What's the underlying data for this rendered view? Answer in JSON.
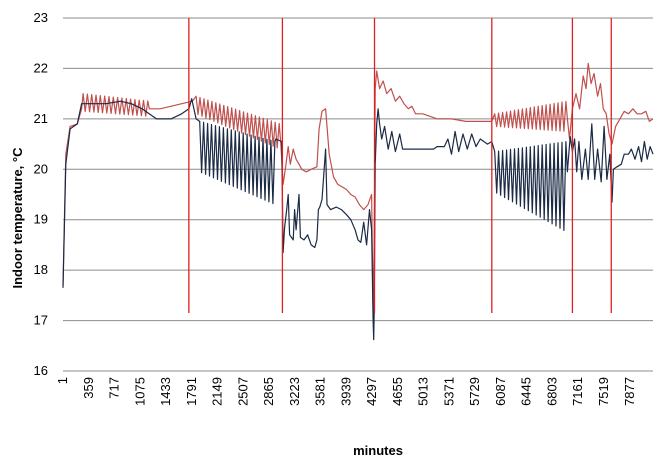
{
  "chart_data": {
    "type": "line",
    "xlabel": "minutes",
    "ylabel": "Indoor temperature, °C",
    "ylim": [
      16,
      23
    ],
    "yticks": [
      16,
      17,
      18,
      19,
      20,
      21,
      22,
      23
    ],
    "xlim": [
      1,
      8200
    ],
    "xticks": [
      1,
      359,
      717,
      1075,
      1433,
      1791,
      2149,
      2507,
      2865,
      3223,
      3581,
      3939,
      4297,
      4655,
      5013,
      5371,
      5729,
      6087,
      6445,
      6803,
      7161,
      7519,
      7877
    ],
    "grid": "horizontal",
    "colors": {
      "dark_series": "#1b2a45",
      "red_series": "#c0504d",
      "event_lines": "#e02020",
      "grid": "#8c8c8c"
    },
    "event_lines_x": [
      1750,
      3050,
      4330,
      5960,
      7080,
      7620
    ],
    "event_lines_yrange": [
      17.15,
      23
    ],
    "series": [
      {
        "color": "#1b2a45",
        "points": [
          [
            1,
            17.65
          ],
          [
            40,
            20.1
          ],
          [
            100,
            20.8
          ],
          [
            200,
            20.9
          ],
          [
            260,
            21.3
          ],
          [
            400,
            21.3
          ],
          [
            600,
            21.3
          ],
          [
            800,
            21.35
          ],
          [
            950,
            21.3
          ],
          [
            1100,
            21.2
          ],
          [
            1300,
            21.0
          ],
          [
            1500,
            21.0
          ],
          [
            1650,
            21.1
          ],
          [
            1750,
            21.2
          ],
          [
            1790,
            21.4
          ],
          [
            1850,
            21.0
          ],
          {
            "osc": [
              1900,
              2950
            ],
            "hi": [
              20.95,
              20.55
            ],
            "lo": [
              19.95,
              19.3
            ],
            "period": 55
          },
          [
            2960,
            20.6
          ],
          [
            3040,
            20.55
          ],
          [
            3060,
            18.35
          ],
          [
            3080,
            18.85
          ],
          [
            3110,
            19.2
          ],
          [
            3130,
            19.5
          ],
          [
            3150,
            18.7
          ],
          [
            3200,
            18.6
          ],
          [
            3220,
            19.2
          ],
          [
            3240,
            18.8
          ],
          [
            3280,
            19.5
          ],
          [
            3300,
            18.65
          ],
          [
            3350,
            18.6
          ],
          [
            3400,
            18.7
          ],
          [
            3450,
            18.5
          ],
          [
            3500,
            18.45
          ],
          [
            3530,
            18.6
          ],
          [
            3550,
            19.2
          ],
          [
            3570,
            19.25
          ],
          [
            3600,
            19.4
          ],
          [
            3650,
            20.4
          ],
          [
            3670,
            19.3
          ],
          [
            3720,
            19.2
          ],
          [
            3800,
            19.25
          ],
          [
            3870,
            19.2
          ],
          [
            3940,
            19.1
          ],
          [
            4000,
            19.0
          ],
          [
            4060,
            18.8
          ],
          [
            4100,
            18.6
          ],
          [
            4140,
            18.55
          ],
          [
            4180,
            18.95
          ],
          [
            4220,
            18.5
          ],
          [
            4260,
            19.2
          ],
          [
            4290,
            18.8
          ],
          [
            4310,
            17.0
          ],
          [
            4318,
            16.62
          ],
          [
            4325,
            17.2
          ],
          [
            4340,
            20.1
          ],
          [
            4360,
            20.9
          ],
          [
            4380,
            21.2
          ],
          [
            4400,
            20.9
          ],
          [
            4430,
            20.6
          ],
          [
            4470,
            20.85
          ],
          [
            4520,
            20.4
          ],
          [
            4570,
            20.75
          ],
          [
            4620,
            20.35
          ],
          [
            4680,
            20.7
          ],
          [
            4720,
            20.4
          ],
          [
            4800,
            20.4
          ],
          [
            5000,
            20.4
          ],
          [
            5150,
            20.4
          ],
          [
            5200,
            20.45
          ],
          [
            5300,
            20.45
          ],
          [
            5350,
            20.6
          ],
          [
            5400,
            20.3
          ],
          [
            5450,
            20.75
          ],
          [
            5500,
            20.35
          ],
          [
            5560,
            20.7
          ],
          [
            5620,
            20.4
          ],
          [
            5680,
            20.7
          ],
          [
            5740,
            20.45
          ],
          [
            5800,
            20.6
          ],
          [
            5900,
            20.5
          ],
          [
            5960,
            20.55
          ],
          {
            "osc": [
              6000,
              7010
            ],
            "hi": [
              20.35,
              20.55
            ],
            "lo": [
              19.55,
              18.75
            ],
            "period": 55
          },
          [
            7010,
            19.95
          ],
          [
            7050,
            20.65
          ],
          [
            7080,
            20.35
          ],
          [
            7110,
            20.6
          ],
          [
            7140,
            19.95
          ],
          [
            7170,
            20.55
          ],
          [
            7210,
            19.8
          ],
          [
            7260,
            20.4
          ],
          [
            7300,
            19.8
          ],
          [
            7350,
            20.9
          ],
          [
            7390,
            19.8
          ],
          [
            7430,
            20.4
          ],
          [
            7480,
            19.75
          ],
          [
            7520,
            20.85
          ],
          [
            7560,
            19.8
          ],
          [
            7600,
            20.3
          ],
          [
            7630,
            19.35
          ],
          [
            7650,
            20.0
          ],
          [
            7700,
            20.05
          ],
          [
            7760,
            20.1
          ],
          [
            7800,
            20.3
          ],
          [
            7860,
            20.3
          ],
          [
            7900,
            20.4
          ],
          [
            7950,
            20.2
          ],
          [
            8000,
            20.45
          ],
          [
            8040,
            20.15
          ],
          [
            8080,
            20.55
          ],
          [
            8120,
            20.2
          ],
          [
            8160,
            20.45
          ],
          [
            8200,
            20.3
          ]
        ]
      },
      {
        "color": "#c0504d",
        "points": [
          [
            1,
            17.7
          ],
          [
            40,
            20.3
          ],
          [
            100,
            20.85
          ],
          [
            200,
            20.9
          ],
          [
            260,
            21.2
          ],
          {
            "osc": [
              280,
              1200
            ],
            "hi": [
              21.5,
              21.35
            ],
            "lo": [
              21.15,
              21.05
            ],
            "period": 60
          },
          [
            1200,
            21.2
          ],
          [
            1350,
            21.2
          ],
          [
            1500,
            21.25
          ],
          [
            1650,
            21.3
          ],
          [
            1800,
            21.35
          ],
          {
            "osc": [
              1850,
              3020
            ],
            "hi": [
              21.45,
              20.9
            ],
            "lo": [
              21.1,
              20.4
            ],
            "period": 55
          },
          [
            3030,
            20.45
          ],
          [
            3060,
            19.7
          ],
          [
            3100,
            20.1
          ],
          [
            3130,
            20.45
          ],
          [
            3160,
            20.1
          ],
          [
            3200,
            20.4
          ],
          [
            3240,
            20.2
          ],
          [
            3280,
            20.1
          ],
          [
            3320,
            20.0
          ],
          [
            3380,
            19.95
          ],
          [
            3450,
            20.0
          ],
          [
            3530,
            20.05
          ],
          [
            3560,
            20.8
          ],
          [
            3600,
            21.15
          ],
          [
            3650,
            21.2
          ],
          [
            3700,
            20.3
          ],
          [
            3760,
            19.85
          ],
          [
            3820,
            19.7
          ],
          [
            3880,
            19.65
          ],
          [
            3940,
            19.6
          ],
          [
            4000,
            19.5
          ],
          [
            4060,
            19.45
          ],
          [
            4120,
            19.3
          ],
          [
            4180,
            19.2
          ],
          [
            4240,
            19.3
          ],
          [
            4290,
            19.5
          ],
          [
            4310,
            17.2
          ],
          [
            4325,
            18.5
          ],
          [
            4340,
            21.6
          ],
          [
            4360,
            21.95
          ],
          [
            4400,
            21.6
          ],
          [
            4450,
            21.75
          ],
          [
            4500,
            21.5
          ],
          [
            4560,
            21.6
          ],
          [
            4620,
            21.35
          ],
          [
            4680,
            21.45
          ],
          [
            4740,
            21.3
          ],
          [
            4800,
            21.2
          ],
          [
            4850,
            21.25
          ],
          [
            4900,
            21.1
          ],
          [
            5000,
            21.1
          ],
          [
            5100,
            21.05
          ],
          [
            5200,
            21.0
          ],
          [
            5400,
            21.0
          ],
          [
            5600,
            20.95
          ],
          [
            5800,
            20.95
          ],
          [
            5960,
            20.95
          ],
          {
            "osc": [
              6000,
              7010
            ],
            "hi": [
              21.1,
              21.35
            ],
            "lo": [
              20.85,
              20.75
            ],
            "period": 55
          },
          [
            7010,
            21.0
          ],
          [
            7040,
            20.6
          ],
          [
            7080,
            21.2
          ],
          [
            7130,
            21.5
          ],
          [
            7180,
            21.2
          ],
          [
            7230,
            21.85
          ],
          [
            7270,
            21.6
          ],
          [
            7300,
            22.1
          ],
          [
            7340,
            21.7
          ],
          [
            7380,
            21.9
          ],
          [
            7430,
            21.45
          ],
          [
            7470,
            21.7
          ],
          [
            7510,
            21.2
          ],
          [
            7550,
            21.1
          ],
          [
            7590,
            20.7
          ],
          [
            7630,
            20.5
          ],
          [
            7680,
            20.85
          ],
          [
            7740,
            21.0
          ],
          [
            7800,
            21.15
          ],
          [
            7860,
            21.1
          ],
          [
            7920,
            21.2
          ],
          [
            7980,
            21.1
          ],
          [
            8040,
            21.1
          ],
          [
            8100,
            21.15
          ],
          [
            8150,
            20.95
          ],
          [
            8200,
            21.0
          ]
        ]
      }
    ]
  }
}
